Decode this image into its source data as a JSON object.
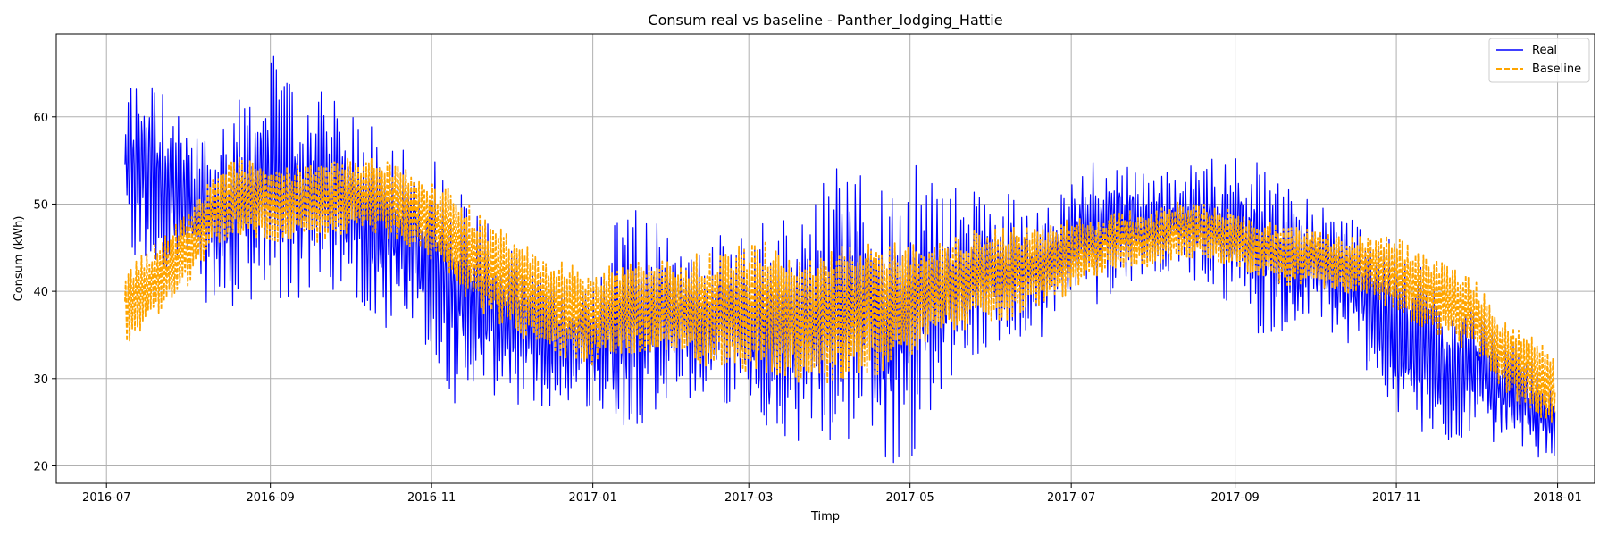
{
  "chart_data": {
    "type": "line",
    "title": "Consum real vs baseline - Panther_lodging_Hattie",
    "xlabel": "Timp",
    "ylabel": "Consum (kWh)",
    "xlim": [
      "2016-06-12",
      "2018-01-15"
    ],
    "ylim": [
      18,
      69.5
    ],
    "grid": true,
    "legend_position": "top-right",
    "x_ticks": [
      "2016-07",
      "2016-09",
      "2016-11",
      "2017-01",
      "2017-03",
      "2017-05",
      "2017-07",
      "2017-09",
      "2017-11",
      "2018-01"
    ],
    "y_ticks": [
      20,
      30,
      40,
      50,
      60
    ],
    "series": [
      {
        "name": "Real",
        "color": "#0000ff",
        "style": "solid",
        "x": [
          "2016-07-08",
          "2016-07-15",
          "2016-07-22",
          "2016-08-01",
          "2016-08-10",
          "2016-08-20",
          "2016-09-01",
          "2016-09-10",
          "2016-09-20",
          "2016-10-01",
          "2016-10-10",
          "2016-10-20",
          "2016-11-01",
          "2016-11-10",
          "2016-11-20",
          "2016-12-01",
          "2016-12-10",
          "2016-12-20",
          "2017-01-01",
          "2017-01-10",
          "2017-01-20",
          "2017-02-01",
          "2017-02-10",
          "2017-02-20",
          "2017-03-01",
          "2017-03-10",
          "2017-03-20",
          "2017-04-01",
          "2017-04-10",
          "2017-04-20",
          "2017-05-01",
          "2017-05-10",
          "2017-05-20",
          "2017-06-01",
          "2017-06-10",
          "2017-06-20",
          "2017-07-01",
          "2017-07-10",
          "2017-07-20",
          "2017-08-01",
          "2017-08-10",
          "2017-08-20",
          "2017-09-01",
          "2017-09-10",
          "2017-09-20",
          "2017-10-01",
          "2017-10-10",
          "2017-10-20",
          "2017-11-01",
          "2017-11-10",
          "2017-11-20",
          "2017-12-01",
          "2017-12-10",
          "2017-12-20",
          "2017-12-31"
        ],
        "mean": [
          53,
          54,
          53,
          50,
          48,
          50,
          53,
          51,
          52,
          50,
          48,
          46,
          43,
          40,
          38,
          36,
          35,
          34,
          34,
          36,
          38,
          37,
          36,
          37,
          36,
          34,
          36,
          38,
          40,
          36,
          38,
          40,
          42,
          42,
          43,
          42,
          46,
          47,
          48,
          48,
          48,
          48,
          47,
          45,
          44,
          43,
          42,
          40,
          35,
          33,
          31,
          31,
          29,
          27,
          25
        ],
        "amplitude": [
          8,
          8,
          7,
          6,
          7,
          9,
          10,
          9,
          8,
          7,
          8,
          8,
          9,
          9,
          8,
          6,
          6,
          5,
          5,
          9,
          9,
          6,
          6,
          7,
          9,
          10,
          9,
          11,
          12,
          11,
          12,
          9,
          7,
          6,
          6,
          5,
          5,
          6,
          5,
          4,
          4,
          5,
          6,
          7,
          6,
          5,
          5,
          6,
          7,
          7,
          6,
          5,
          5,
          4,
          3
        ]
      },
      {
        "name": "Baseline",
        "color": "#ffa500",
        "style": "dashed",
        "x": [
          "2016-07-08",
          "2016-07-15",
          "2016-07-22",
          "2016-08-01",
          "2016-08-10",
          "2016-08-20",
          "2016-09-01",
          "2016-09-10",
          "2016-09-20",
          "2016-10-01",
          "2016-10-10",
          "2016-10-20",
          "2016-11-01",
          "2016-11-10",
          "2016-11-20",
          "2016-12-01",
          "2016-12-10",
          "2016-12-20",
          "2017-01-01",
          "2017-01-10",
          "2017-01-20",
          "2017-02-01",
          "2017-02-10",
          "2017-02-20",
          "2017-03-01",
          "2017-03-10",
          "2017-03-20",
          "2017-04-01",
          "2017-04-10",
          "2017-04-20",
          "2017-05-01",
          "2017-05-10",
          "2017-05-20",
          "2017-06-01",
          "2017-06-10",
          "2017-06-20",
          "2017-07-01",
          "2017-07-10",
          "2017-07-20",
          "2017-08-01",
          "2017-08-10",
          "2017-08-20",
          "2017-09-01",
          "2017-09-10",
          "2017-09-20",
          "2017-10-01",
          "2017-10-10",
          "2017-10-20",
          "2017-11-01",
          "2017-11-10",
          "2017-11-20",
          "2017-12-01",
          "2017-12-10",
          "2017-12-20",
          "2017-12-31"
        ],
        "mean": [
          38,
          40,
          42,
          45,
          49,
          51,
          50,
          50,
          50,
          51,
          51,
          50,
          48,
          46,
          43,
          41,
          39,
          38,
          37,
          38,
          38,
          38,
          38,
          38,
          38,
          38,
          37,
          37,
          38,
          38,
          39,
          40,
          41,
          42,
          42,
          43,
          44,
          45,
          46,
          46,
          47,
          47,
          46,
          45,
          44,
          44,
          43,
          43,
          42,
          40,
          39,
          37,
          33,
          31,
          29
        ],
        "amplitude": [
          4,
          4,
          4,
          4,
          4,
          4,
          4,
          4,
          4,
          4,
          4,
          4,
          4,
          5,
          5,
          5,
          5,
          5,
          5,
          5,
          5,
          5,
          6,
          6,
          7,
          7,
          7,
          7,
          7,
          7,
          6,
          5,
          5,
          5,
          5,
          4,
          4,
          3,
          3,
          3,
          3,
          3,
          3,
          3,
          3,
          3,
          3,
          3,
          4,
          4,
          4,
          4,
          4,
          4,
          4
        ]
      }
    ]
  }
}
